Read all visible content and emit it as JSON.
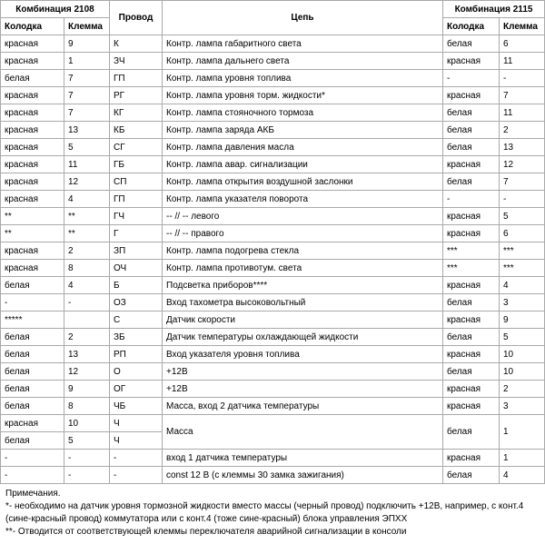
{
  "headers": {
    "combo2108": "Комбинация 2108",
    "combo2115": "Комбинация 2115",
    "wire": "Провод",
    "circuit": "Цепь",
    "block": "Колодка",
    "terminal": "Клемма"
  },
  "rows": [
    {
      "a": "красная",
      "b": "9",
      "c": "К",
      "d": "Контр. лампа габаритного света",
      "e": "белая",
      "f": "6"
    },
    {
      "a": "красная",
      "b": "1",
      "c": "ЗЧ",
      "d": "Контр. лампа дальнего света",
      "e": "красная",
      "f": "11"
    },
    {
      "a": "белая",
      "b": "7",
      "c": "ГП",
      "d": "Контр. лампа уровня топлива",
      "e": "-",
      "f": "-"
    },
    {
      "a": "красная",
      "b": "7",
      "c": "РГ",
      "d": "Контр. лампа уровня торм. жидкости*",
      "e": "красная",
      "f": "7"
    },
    {
      "a": "красная",
      "b": "7",
      "c": "КГ",
      "d": "Контр. лампа стояночного тормоза",
      "e": "белая",
      "f": "11"
    },
    {
      "a": "красная",
      "b": "13",
      "c": "КБ",
      "d": "Контр. лампа заряда АКБ",
      "e": "белая",
      "f": "2"
    },
    {
      "a": "красная",
      "b": "5",
      "c": "СГ",
      "d": "Контр. лампа давления масла",
      "e": "белая",
      "f": "13"
    },
    {
      "a": "красная",
      "b": "11",
      "c": "ГБ",
      "d": "Контр. лампа авар. сигнализации",
      "e": "красная",
      "f": "12"
    },
    {
      "a": "красная",
      "b": "12",
      "c": "СП",
      "d": "Контр. лампа открытия воздушной заслонки",
      "e": "белая",
      "f": "7"
    },
    {
      "a": "красная",
      "b": "4",
      "c": "ГП",
      "d": "Контр. лампа указателя поворота",
      "e": "-",
      "f": "-"
    },
    {
      "a": "**",
      "b": "**",
      "c": "ГЧ",
      "d": "-- // -- левого",
      "e": "красная",
      "f": "5"
    },
    {
      "a": "**",
      "b": "**",
      "c": "Г",
      "d": "-- // -- правого",
      "e": "красная",
      "f": "6"
    },
    {
      "a": "красная",
      "b": "2",
      "c": "ЗП",
      "d": "Контр. лампа подогрева стекла",
      "e": "***",
      "f": "***"
    },
    {
      "a": "красная",
      "b": "8",
      "c": "ОЧ",
      "d": "Контр. лампа противотум. света",
      "e": "***",
      "f": "***"
    },
    {
      "a": "белая",
      "b": "4",
      "c": "Б",
      "d": "Подсветка приборов****",
      "e": "красная",
      "f": "4"
    },
    {
      "a": "-",
      "b": "-",
      "c": "ОЗ",
      "d": "Вход тахометра высоковольтный",
      "e": "белая",
      "f": "3"
    },
    {
      "a": "*****",
      "b": "",
      "c": "С",
      "d": "Датчик скорости",
      "e": "красная",
      "f": "9"
    },
    {
      "a": "белая",
      "b": "2",
      "c": "ЗБ",
      "d": "Датчик температуры охлаждающей жидкости",
      "e": "белая",
      "f": "5"
    },
    {
      "a": "белая",
      "b": "13",
      "c": "РП",
      "d": "Вход указателя уровня топлива",
      "e": "красная",
      "f": "10"
    },
    {
      "a": "белая",
      "b": "12",
      "c": "О",
      "d": "+12В",
      "e": "белая",
      "f": "10"
    },
    {
      "a": "белая",
      "b": "9",
      "c": "ОГ",
      "d": "+12В",
      "e": "красная",
      "f": "2"
    },
    {
      "a": "белая",
      "b": "8",
      "c": "ЧБ",
      "d": "Масса, вход 2 датчика температуры",
      "e": "красная",
      "f": "3"
    },
    {
      "a": "красная",
      "b": "10",
      "c": "Ч",
      "d": "Масса",
      "span": 2,
      "e": "белая",
      "f": "1"
    },
    {
      "a": "белая",
      "b": "5",
      "c": "Ч"
    },
    {
      "a": "-",
      "b": "-",
      "c": "-",
      "d": "вход 1 датчика температуры",
      "e": "красная",
      "f": "1"
    },
    {
      "a": "-",
      "b": "-",
      "c": "-",
      "d": "const 12 В (с клеммы 30 замка зажигания)",
      "e": "белая",
      "f": "4"
    }
  ],
  "notes": {
    "title": "Примечания.",
    "n1": "*- необходимо на датчик уровня тормозной жидкости вместо массы (черный провод) подключить +12В, например, с конт.4 (сине-красный провод) коммутатора или с конт.4 (тоже сине-красный) блока управления ЭПХХ",
    "n2": "**- Отводится от соответствующей клеммы переключателя аварийной сигнализации в консоли"
  }
}
